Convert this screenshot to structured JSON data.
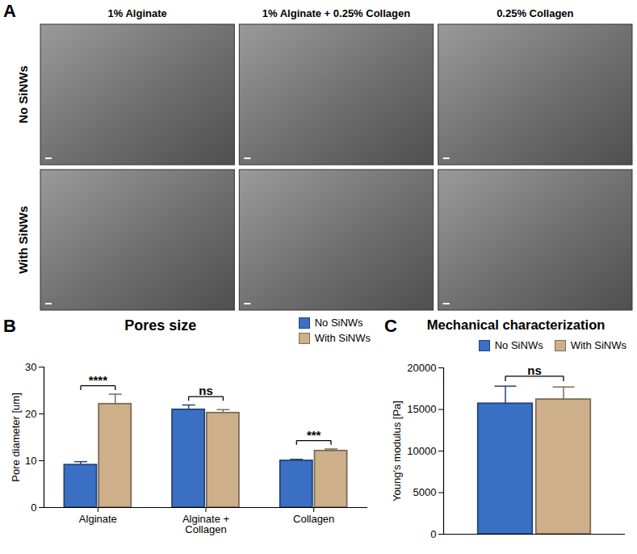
{
  "image_grid": {
    "panel": "A",
    "column_titles": [
      "1% Alginate",
      "1% Alginate + 0.25% Collagen",
      "0.25% Collagen"
    ],
    "row_titles": [
      "No SiNWs",
      "With SiNWs"
    ]
  },
  "chart_data": [
    {
      "panel": "B",
      "type": "bar",
      "title": "Pores size",
      "categories": [
        "Alginate",
        "Alginate + Collagen",
        "Collagen"
      ],
      "series": [
        {
          "name": "No SiNWs",
          "color": "#3b6fc4",
          "values": [
            9.1,
            20.9,
            10.0
          ],
          "errors": [
            0.7,
            1.0,
            0.3
          ]
        },
        {
          "name": "With SiNWs",
          "color": "#cdb08a",
          "values": [
            22.1,
            20.2,
            12.1
          ],
          "errors": [
            2.1,
            0.7,
            0.4
          ]
        }
      ],
      "annotations": [
        "****",
        "ns",
        "***"
      ],
      "ylabel": "Pore diameter [um]",
      "ylim": [
        0,
        30
      ],
      "yticks": [
        0,
        10,
        20,
        30
      ],
      "grid": false,
      "legend": "top-right"
    },
    {
      "panel": "C",
      "type": "bar",
      "title": "Mechanical characterization",
      "categories": [
        null
      ],
      "series": [
        {
          "name": "No SiNWs",
          "color": "#3b6fc4",
          "values": [
            15700
          ],
          "errors": [
            2100
          ]
        },
        {
          "name": "With SiNWs",
          "color": "#cdb08a",
          "values": [
            16200
          ],
          "errors": [
            1500
          ]
        }
      ],
      "annotations": [
        "ns"
      ],
      "ylabel": "Young's modulus [Pa]",
      "ylim": [
        0,
        20000
      ],
      "yticks": [
        0,
        5000,
        10000,
        15000,
        20000
      ],
      "grid": false,
      "legend": "top-right",
      "tick_labels": "y"
    }
  ]
}
